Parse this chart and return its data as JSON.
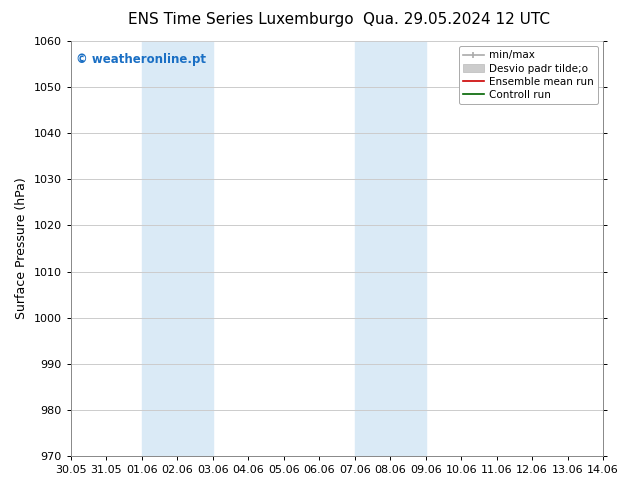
{
  "title_left": "ENS Time Series Luxemburgo",
  "title_right": "Qua. 29.05.2024 12 UTC",
  "ylabel": "Surface Pressure (hPa)",
  "ylim": [
    970,
    1060
  ],
  "yticks": [
    970,
    980,
    990,
    1000,
    1010,
    1020,
    1030,
    1040,
    1050,
    1060
  ],
  "x_labels": [
    "30.05",
    "31.05",
    "01.06",
    "02.06",
    "03.06",
    "04.06",
    "05.06",
    "06.06",
    "07.06",
    "08.06",
    "09.06",
    "10.06",
    "11.06",
    "12.06",
    "13.06",
    "14.06"
  ],
  "x_values": [
    0,
    1,
    2,
    3,
    4,
    5,
    6,
    7,
    8,
    9,
    10,
    11,
    12,
    13,
    14,
    15
  ],
  "shaded_regions": [
    {
      "xmin": 2,
      "xmax": 4
    },
    {
      "xmin": 8,
      "xmax": 10
    }
  ],
  "shaded_color": "#daeaf6",
  "watermark_text": "© weatheronline.pt",
  "watermark_color": "#1a6fc4",
  "legend_labels": [
    "min/max",
    "Desvio padr tilde;o",
    "Ensemble mean run",
    "Controll run"
  ],
  "legend_colors": [
    "#aaaaaa",
    "#cccccc",
    "#cc0000",
    "#006400"
  ],
  "bg_color": "#ffffff",
  "grid_color": "#cccccc",
  "title_fontsize": 11,
  "tick_fontsize": 8,
  "ylabel_fontsize": 9,
  "legend_fontsize": 7.5
}
